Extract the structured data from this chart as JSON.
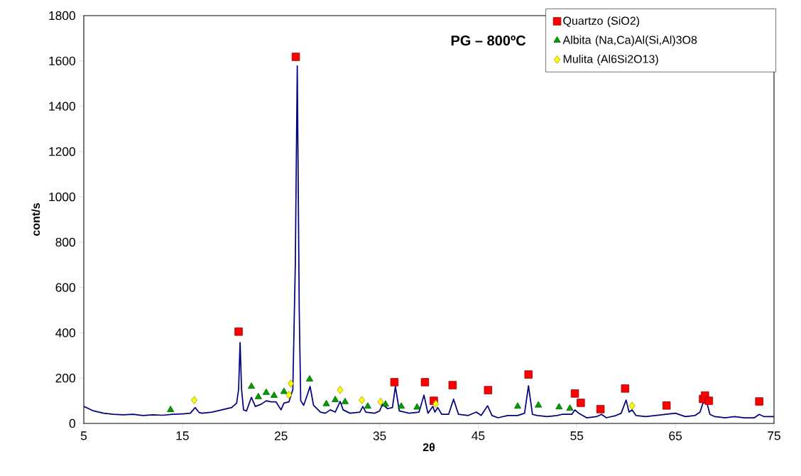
{
  "chart_data": {
    "type": "line",
    "title": "PG – 800ºC",
    "xlabel": "2θ",
    "ylabel": "cont/s",
    "xlim": [
      5,
      75
    ],
    "xticks": [
      5,
      15,
      25,
      35,
      45,
      55,
      65,
      75
    ],
    "ylim": [
      0,
      1800
    ],
    "yticks": [
      0,
      200,
      400,
      600,
      800,
      1000,
      1200,
      1400,
      1600,
      1800
    ],
    "legend": "top right",
    "series": [
      {
        "type": "line",
        "color": "#000080",
        "marker": "none",
        "line_style": "solid",
        "x": [
          5,
          5.5,
          6,
          7,
          8,
          9,
          10,
          11,
          12,
          13,
          14,
          15,
          15.8,
          16.3,
          16.7,
          17,
          18,
          19,
          19.5,
          20,
          20.5,
          20.7,
          20.85,
          21.0,
          21.2,
          21.5,
          22,
          22.4,
          23,
          23.5,
          24,
          24.5,
          25,
          25.3,
          25.8,
          26.2,
          26.45,
          26.65,
          26.85,
          27.0,
          27.3,
          27.7,
          27.95,
          28.3,
          29,
          29.5,
          30,
          30.5,
          31,
          31.3,
          32,
          33,
          33.3,
          33.6,
          34.5,
          35,
          35.3,
          35.8,
          36.3,
          36.6,
          37,
          38,
          39,
          39.5,
          39.9,
          40.4,
          40.6,
          40.9,
          41.3,
          42,
          42.5,
          43,
          44,
          44.8,
          45.3,
          45.95,
          46.4,
          47,
          48,
          49,
          49.7,
          50.1,
          50.5,
          51,
          52,
          53,
          53.5,
          54.5,
          54.8,
          55.2,
          56,
          57,
          57.5,
          58,
          59,
          59.5,
          60,
          60.3,
          60.6,
          61,
          62,
          63,
          64,
          65,
          66,
          67,
          67.5,
          67.8,
          68.2,
          68.5,
          69,
          70,
          71,
          72,
          73,
          73.5,
          74,
          75
        ],
        "values": [
          75,
          65,
          55,
          45,
          40,
          38,
          40,
          35,
          38,
          36,
          40,
          42,
          45,
          70,
          48,
          45,
          50,
          60,
          65,
          70,
          90,
          150,
          357,
          150,
          60,
          55,
          115,
          75,
          85,
          100,
          95,
          95,
          60,
          90,
          95,
          150,
          700,
          1578,
          500,
          100,
          80,
          130,
          163,
          80,
          50,
          45,
          60,
          50,
          97,
          60,
          45,
          50,
          75,
          50,
          45,
          55,
          85,
          65,
          70,
          163,
          55,
          45,
          50,
          125,
          45,
          75,
          50,
          70,
          40,
          40,
          107,
          40,
          35,
          50,
          35,
          78,
          35,
          25,
          35,
          35,
          45,
          166,
          40,
          35,
          30,
          35,
          40,
          40,
          60,
          45,
          25,
          30,
          40,
          25,
          35,
          45,
          103,
          50,
          60,
          35,
          30,
          35,
          40,
          45,
          30,
          35,
          50,
          91,
          90,
          40,
          30,
          25,
          30,
          25,
          25,
          40,
          30,
          30
        ]
      },
      {
        "type": "scatter",
        "name": "Quartzo (SiO2)",
        "color": "#ff0000",
        "marker": "square",
        "x": [
          20.7,
          26.5,
          36.5,
          39.6,
          40.5,
          42.4,
          46.0,
          50.1,
          54.8,
          55.4,
          57.4,
          59.9,
          64.1,
          67.8,
          68.0,
          68.4,
          73.5
        ],
        "values": [
          405,
          1618,
          182,
          182,
          100,
          169,
          147,
          216,
          132,
          91,
          63,
          154,
          79,
          108,
          123,
          100,
          97
        ]
      },
      {
        "type": "scatter",
        "name": "Albita (Na,Ca)Al(Si,Al)3O8",
        "color": "#00a000",
        "marker": "triangle",
        "x": [
          13.8,
          22.0,
          22.7,
          23.5,
          24.3,
          25.3,
          27.9,
          29.6,
          30.5,
          31.5,
          33.8,
          35.6,
          37.2,
          38.8,
          49.0,
          51.1,
          53.2,
          54.3
        ],
        "values": [
          60,
          163,
          117,
          136,
          123,
          140,
          195,
          86,
          104,
          95,
          75,
          84,
          75,
          71,
          75,
          80,
          72,
          66
        ]
      },
      {
        "type": "scatter",
        "name": "Mulita (Al6Si2O13)",
        "color": "#ffff00",
        "marker": "diamond",
        "x": [
          16.2,
          25.8,
          26.0,
          31.0,
          33.2,
          35.1,
          40.7,
          60.6
        ],
        "values": [
          103,
          126,
          176,
          148,
          103,
          95,
          86,
          78
        ]
      }
    ]
  }
}
